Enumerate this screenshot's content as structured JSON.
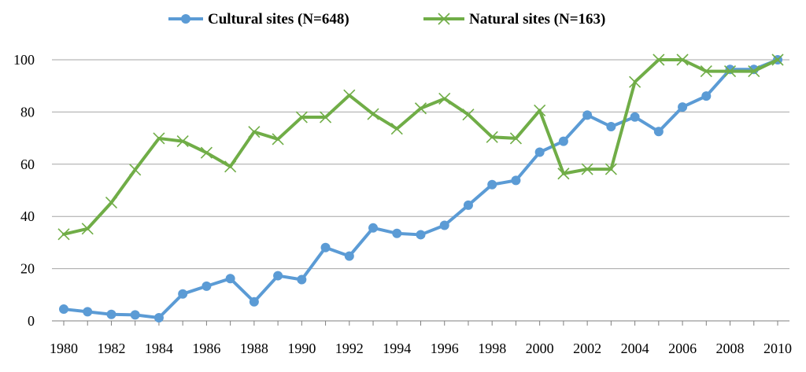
{
  "chart_data": {
    "type": "line",
    "x": [
      1980,
      1981,
      1982,
      1983,
      1984,
      1985,
      1986,
      1987,
      1988,
      1989,
      1990,
      1991,
      1992,
      1993,
      1994,
      1995,
      1996,
      1997,
      1998,
      1999,
      2000,
      2001,
      2002,
      2003,
      2004,
      2005,
      2006,
      2007,
      2008,
      2009,
      2010
    ],
    "x_tick_labels": [
      "1980",
      "1982",
      "1984",
      "1986",
      "1988",
      "1990",
      "1992",
      "1994",
      "1996",
      "1998",
      "2000",
      "2002",
      "2004",
      "2006",
      "2008",
      "2010"
    ],
    "y_tick_labels": [
      "0",
      "20",
      "40",
      "60",
      "80",
      "100"
    ],
    "ylim": [
      0,
      100
    ],
    "grid": "horizontal",
    "legend_position": "top-center",
    "series": [
      {
        "name": "Cultural sites (N=648)",
        "color": "#5b9bd5",
        "marker": "circle",
        "values": [
          4.5,
          3.5,
          2.5,
          2.3,
          1.2,
          10.3,
          13.3,
          16.2,
          7.3,
          17.3,
          15.8,
          28.1,
          24.8,
          35.6,
          33.5,
          33.0,
          36.6,
          44.3,
          52.2,
          53.8,
          64.6,
          68.8,
          78.8,
          74.4,
          78.1,
          72.5,
          81.9,
          86.1,
          96.3,
          96.3,
          100
        ]
      },
      {
        "name": "Natural sites (N=163)",
        "color": "#70ad47",
        "marker": "x",
        "values": [
          33.2,
          35.3,
          45.3,
          57.9,
          69.9,
          68.8,
          64.4,
          59.1,
          72.4,
          69.6,
          78.0,
          78.0,
          86.4,
          79.2,
          73.6,
          81.4,
          85.1,
          79.0,
          70.4,
          69.9,
          80.6,
          56.4,
          58.1,
          58.1,
          91.5,
          100,
          100,
          95.6,
          95.6,
          95.6,
          100
        ]
      }
    ]
  }
}
